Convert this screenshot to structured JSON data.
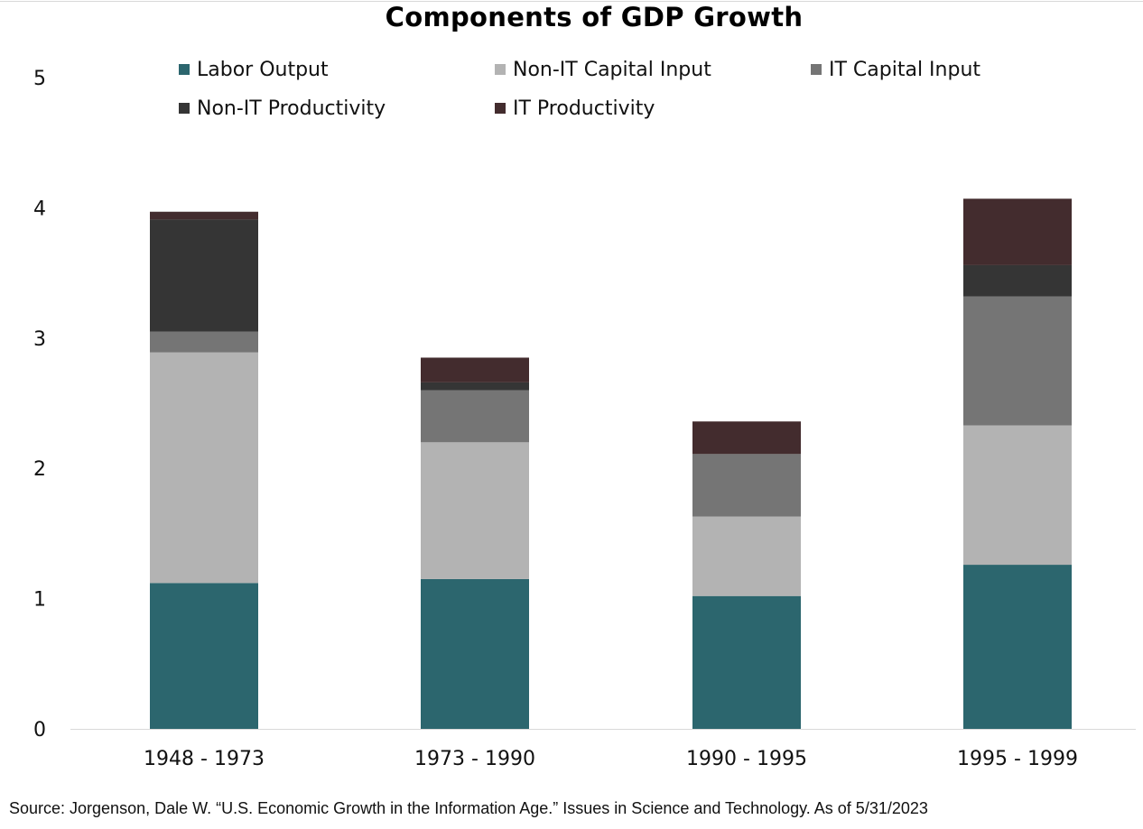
{
  "chart_data": {
    "type": "bar",
    "stacked": true,
    "title": "Components of GDP Growth",
    "categories": [
      "1948 - 1973",
      "1973 - 1990",
      "1990 - 1995",
      "1995 - 1999"
    ],
    "series": [
      {
        "name": "Labor Output",
        "color": "#2c666e",
        "values": [
          1.12,
          1.15,
          1.02,
          1.26
        ]
      },
      {
        "name": "Non-IT Capital Input",
        "color": "#b3b3b3",
        "values": [
          1.77,
          1.05,
          0.61,
          1.07
        ]
      },
      {
        "name": "IT Capital Input",
        "color": "#757575",
        "values": [
          0.16,
          0.4,
          0.48,
          0.99
        ]
      },
      {
        "name": "Non-IT Productivity",
        "color": "#353535",
        "values": [
          0.86,
          0.06,
          0.0,
          0.24
        ]
      },
      {
        "name": "IT Productivity",
        "color": "#432c2e",
        "values": [
          0.06,
          0.19,
          0.25,
          0.51
        ]
      }
    ],
    "ylim": [
      0,
      5
    ],
    "yticks": [
      0,
      1,
      2,
      3,
      4,
      5
    ],
    "xlabel": "",
    "ylabel": "",
    "grid": false,
    "legend_position": "top"
  },
  "source_note": "Source: Jorgenson, Dale W. “U.S. Economic Growth in the Information Age.” Issues in Science and Technology. As of 5/31/2023"
}
